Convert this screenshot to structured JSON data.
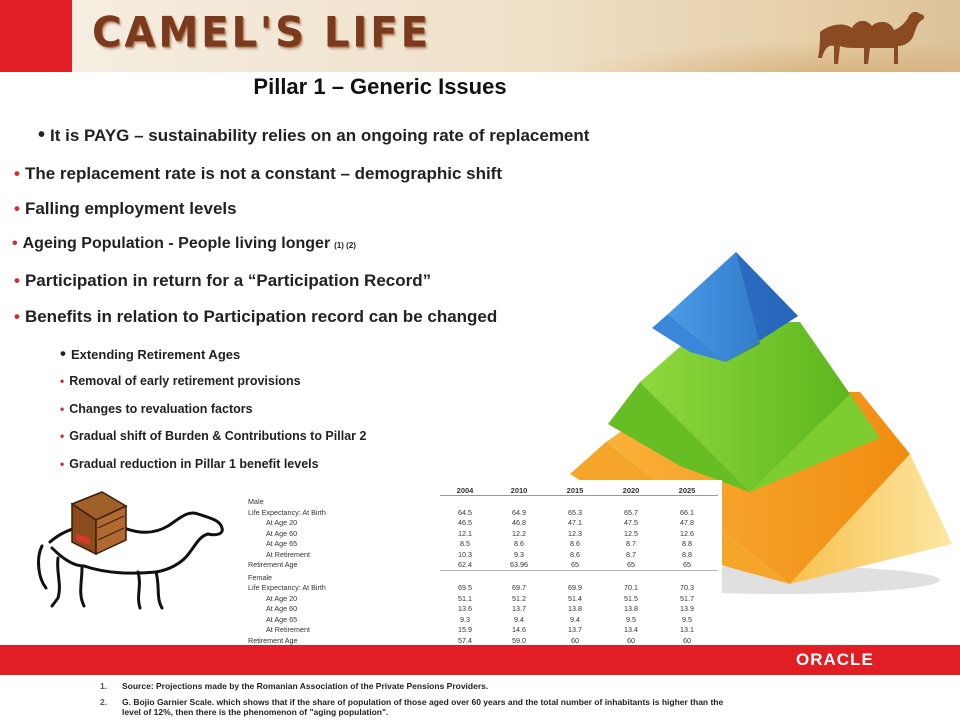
{
  "header": {
    "title": "CAMEL'S LIFE",
    "accent_color": "#e01e24",
    "title_color": "#7a3a1e",
    "camel_icon": "camel-silhouette-icon"
  },
  "slide": {
    "title": "Pillar 1 – Generic Issues",
    "bullets": [
      "It is PAYG – sustainability relies on an ongoing rate of replacement",
      "The replacement rate is not a constant – demographic shift",
      "Falling employment levels",
      "Ageing Population - People living longer",
      "Participation in return for a “Participation Record”",
      "Benefits in relation to Participation record can be changed"
    ],
    "ageing_refs": "(1) (2)",
    "sub_bullets": [
      "Extending Retirement Ages",
      "Removal of early retirement provisions",
      "Changes to revaluation factors",
      "Gradual shift of Burden & Contributions to Pillar 2",
      "Gradual reduction in Pillar 1 benefit levels"
    ]
  },
  "pyramid": {
    "top_color": "#2f7fd6",
    "middle_color": "#6cc22a",
    "bottom_color": "#f39a1a"
  },
  "table": {
    "years": [
      "2004",
      "2010",
      "2015",
      "2020",
      "2025"
    ],
    "male_label": "Male",
    "female_label": "Female",
    "male_rows": [
      {
        "label": "Life Expectancy: At Birth",
        "indent": false,
        "values": [
          "64.5",
          "64.9",
          "65.3",
          "65.7",
          "66.1"
        ]
      },
      {
        "label": "At Age 20",
        "indent": true,
        "values": [
          "46.5",
          "46.8",
          "47.1",
          "47.5",
          "47.8"
        ]
      },
      {
        "label": "At Age 60",
        "indent": true,
        "values": [
          "12.1",
          "12.2",
          "12.3",
          "12.5",
          "12.6"
        ]
      },
      {
        "label": "At Age 65",
        "indent": true,
        "values": [
          "8.5",
          "8.6",
          "8.6",
          "8.7",
          "8.8"
        ]
      },
      {
        "label": "At Retirement",
        "indent": true,
        "values": [
          "10.3",
          "9.3",
          "8.6",
          "8.7",
          "8.8"
        ]
      },
      {
        "label": "Retirement Age",
        "indent": false,
        "values": [
          "62.4",
          "63.96",
          "65",
          "65",
          "65"
        ]
      }
    ],
    "female_rows": [
      {
        "label": "Life Expectancy: At Birth",
        "indent": false,
        "values": [
          "69.5",
          "69.7",
          "69.9",
          "70.1",
          "70.3"
        ]
      },
      {
        "label": "At Age 20",
        "indent": true,
        "values": [
          "51.1",
          "51.2",
          "51.4",
          "51.5",
          "51.7"
        ]
      },
      {
        "label": "At Age 60",
        "indent": true,
        "values": [
          "13.6",
          "13.7",
          "13.8",
          "13.8",
          "13.9"
        ]
      },
      {
        "label": "At Age 65",
        "indent": true,
        "values": [
          "9.3",
          "9.4",
          "9.4",
          "9.5",
          "9.5"
        ]
      },
      {
        "label": "At Retirement",
        "indent": true,
        "values": [
          "15.9",
          "14.6",
          "13.7",
          "13.4",
          "13.1"
        ]
      },
      {
        "label": "Retirement Age",
        "indent": false,
        "values": [
          "57.4",
          "59.0",
          "60",
          "60",
          "60"
        ]
      }
    ]
  },
  "camel_illustration": {
    "icon": "camel-with-crate-icon"
  },
  "footer": {
    "brand": "ORACLE",
    "notes": [
      {
        "num": "1.",
        "text": "Source: Projections made by the Romanian Association of the Private Pensions Providers."
      },
      {
        "num": "2.",
        "text": "G. Bojio Garnier Scale. which shows that if the share of population of those aged over 60 years and the total number of inhabitants is higher than the level of 12%, then there is the phenomenon of \"aging population\"."
      }
    ]
  }
}
